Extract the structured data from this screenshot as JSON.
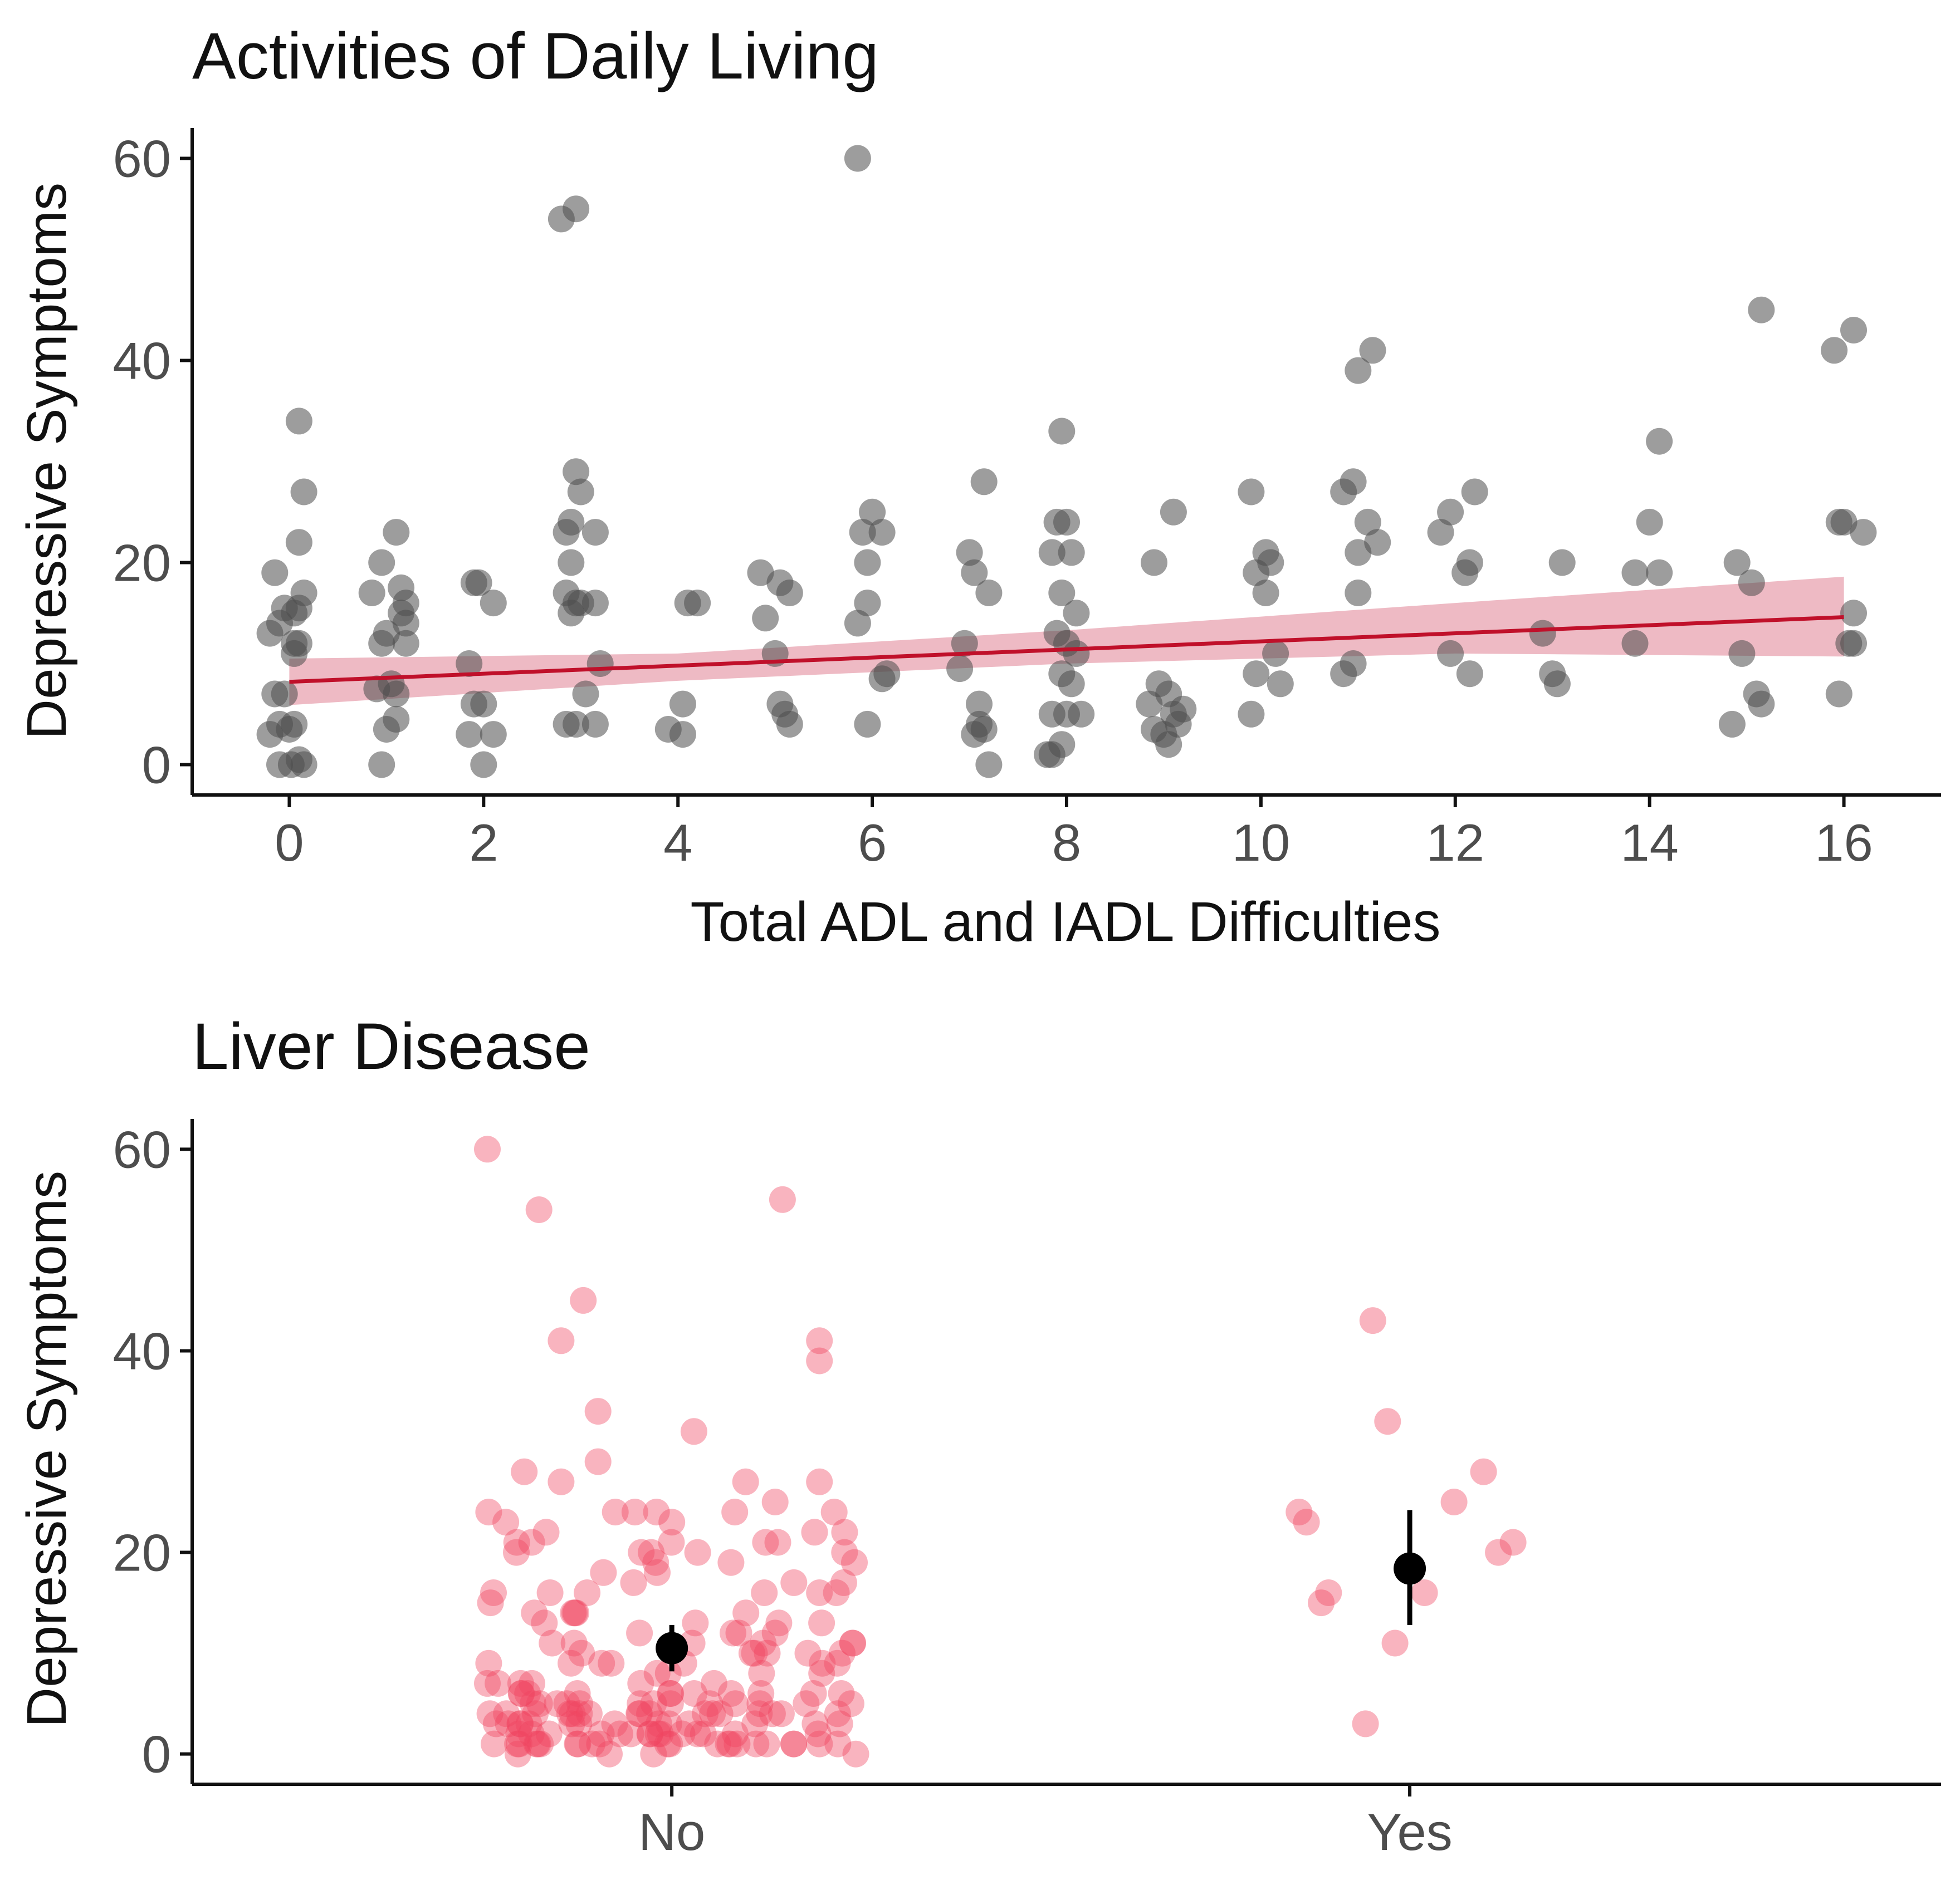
{
  "chart_data": [
    {
      "type": "scatter",
      "title": "Activities of Daily Living",
      "xlabel": "Total ADL and IADL Difficulties",
      "ylabel": "Depressive Symptoms",
      "xlim": [
        -1,
        17
      ],
      "ylim": [
        -3,
        63
      ],
      "xticks": [
        0,
        2,
        4,
        6,
        8,
        10,
        12,
        14,
        16
      ],
      "yticks": [
        0,
        20,
        40,
        60
      ],
      "point_color": "#4d4d4d",
      "fit": {
        "x0": 0,
        "y0": 8.2,
        "x1": 16,
        "y1": 14.6,
        "line_color": "#c0102a",
        "band_color": "#d9677d",
        "ci_lower": [
          [
            0,
            5.9
          ],
          [
            4,
            8.3
          ],
          [
            8,
            10.0
          ],
          [
            12,
            11.0
          ],
          [
            16,
            10.7
          ]
        ],
        "ci_upper": [
          [
            0,
            10.5
          ],
          [
            4,
            11.0
          ],
          [
            8,
            13.3
          ],
          [
            12,
            16.0
          ],
          [
            16,
            18.6
          ]
        ]
      },
      "points": [
        [
          -0.15,
          19
        ],
        [
          -0.2,
          13
        ],
        [
          -0.1,
          14
        ],
        [
          -0.05,
          15.5
        ],
        [
          0.05,
          15
        ],
        [
          0.1,
          12
        ],
        [
          0.05,
          11
        ],
        [
          -0.15,
          7
        ],
        [
          -0.05,
          7
        ],
        [
          -0.2,
          3
        ],
        [
          -0.1,
          4
        ],
        [
          0,
          3.5
        ],
        [
          0.05,
          4
        ],
        [
          0.1,
          0.5
        ],
        [
          -0.1,
          0
        ],
        [
          0.02,
          0
        ],
        [
          0.1,
          34
        ],
        [
          0.1,
          22
        ],
        [
          0.15,
          27
        ],
        [
          0.15,
          17
        ],
        [
          0.1,
          15.5
        ],
        [
          0.05,
          12
        ],
        [
          0.15,
          0
        ],
        [
          0.85,
          17
        ],
        [
          0.95,
          20
        ],
        [
          1.0,
          13
        ],
        [
          1.1,
          23
        ],
        [
          1.15,
          17.5
        ],
        [
          1.2,
          16
        ],
        [
          1.15,
          15
        ],
        [
          1.2,
          14
        ],
        [
          0.95,
          12
        ],
        [
          1.2,
          12
        ],
        [
          0.9,
          7.5
        ],
        [
          1.05,
          8
        ],
        [
          1.1,
          7
        ],
        [
          1.0,
          3.5
        ],
        [
          1.1,
          4.5
        ],
        [
          0.95,
          0
        ],
        [
          1.9,
          18
        ],
        [
          1.95,
          18
        ],
        [
          2.1,
          16
        ],
        [
          1.85,
          10
        ],
        [
          1.9,
          6
        ],
        [
          2.0,
          6
        ],
        [
          1.85,
          3
        ],
        [
          2.1,
          3
        ],
        [
          2.0,
          0
        ],
        [
          2.8,
          54
        ],
        [
          2.95,
          55
        ],
        [
          2.95,
          29
        ],
        [
          3.0,
          27
        ],
        [
          2.9,
          24
        ],
        [
          3.15,
          23
        ],
        [
          2.85,
          23
        ],
        [
          2.9,
          20
        ],
        [
          2.85,
          17
        ],
        [
          3.0,
          16
        ],
        [
          3.15,
          16
        ],
        [
          2.95,
          16
        ],
        [
          2.9,
          15
        ],
        [
          3.2,
          10
        ],
        [
          3.05,
          7
        ],
        [
          2.85,
          4
        ],
        [
          2.95,
          4
        ],
        [
          3.15,
          4
        ],
        [
          4.1,
          16
        ],
        [
          4.2,
          16
        ],
        [
          4.05,
          6
        ],
        [
          3.9,
          3.5
        ],
        [
          4.05,
          3
        ],
        [
          4.85,
          19
        ],
        [
          4.9,
          14.5
        ],
        [
          5.05,
          18
        ],
        [
          5.15,
          17
        ],
        [
          5.0,
          11
        ],
        [
          5.05,
          6
        ],
        [
          5.1,
          5
        ],
        [
          5.15,
          4
        ],
        [
          5.85,
          60
        ],
        [
          6.0,
          25
        ],
        [
          5.9,
          23
        ],
        [
          6.1,
          23
        ],
        [
          5.95,
          20
        ],
        [
          5.85,
          14
        ],
        [
          5.95,
          16
        ],
        [
          6.15,
          9
        ],
        [
          6.1,
          8.5
        ],
        [
          5.95,
          4
        ],
        [
          7.0,
          21
        ],
        [
          7.05,
          19
        ],
        [
          7.2,
          17
        ],
        [
          7.15,
          28
        ],
        [
          6.95,
          12
        ],
        [
          6.9,
          9.5
        ],
        [
          7.1,
          6
        ],
        [
          7.1,
          4
        ],
        [
          7.05,
          3
        ],
        [
          7.15,
          3.5
        ],
        [
          7.2,
          0
        ],
        [
          7.85,
          21
        ],
        [
          8.05,
          21
        ],
        [
          7.9,
          24
        ],
        [
          8.0,
          24
        ],
        [
          7.95,
          17
        ],
        [
          8.1,
          15
        ],
        [
          7.9,
          13
        ],
        [
          8.0,
          12
        ],
        [
          8.1,
          11
        ],
        [
          7.95,
          9
        ],
        [
          8.05,
          8
        ],
        [
          7.85,
          5
        ],
        [
          8.0,
          5
        ],
        [
          8.15,
          5
        ],
        [
          7.8,
          1
        ],
        [
          7.85,
          1
        ],
        [
          7.95,
          2
        ],
        [
          7.95,
          33
        ],
        [
          8.9,
          20
        ],
        [
          9.1,
          25
        ],
        [
          8.95,
          8
        ],
        [
          9.05,
          7
        ],
        [
          8.85,
          6
        ],
        [
          9.1,
          5
        ],
        [
          9.2,
          5.5
        ],
        [
          8.9,
          3.5
        ],
        [
          9.0,
          3
        ],
        [
          9.15,
          4
        ],
        [
          9.05,
          2
        ],
        [
          9.9,
          27
        ],
        [
          9.95,
          19
        ],
        [
          10.05,
          21
        ],
        [
          10.1,
          20
        ],
        [
          10.05,
          17
        ],
        [
          10.15,
          11
        ],
        [
          9.95,
          9
        ],
        [
          10.2,
          8
        ],
        [
          9.9,
          5
        ],
        [
          10.85,
          27
        ],
        [
          10.95,
          28
        ],
        [
          11.0,
          21
        ],
        [
          11.1,
          24
        ],
        [
          11.2,
          22
        ],
        [
          11.0,
          17
        ],
        [
          10.95,
          10
        ],
        [
          10.85,
          9
        ],
        [
          11.0,
          39
        ],
        [
          11.15,
          41
        ],
        [
          11.85,
          23
        ],
        [
          11.95,
          25
        ],
        [
          12.2,
          27
        ],
        [
          12.15,
          20
        ],
        [
          12.1,
          19
        ],
        [
          11.95,
          11
        ],
        [
          12.15,
          9
        ],
        [
          13.1,
          20
        ],
        [
          12.9,
          13
        ],
        [
          13.0,
          9
        ],
        [
          13.05,
          8
        ],
        [
          13.85,
          19
        ],
        [
          14.0,
          24
        ],
        [
          14.1,
          19
        ],
        [
          14.1,
          32
        ],
        [
          13.85,
          12
        ],
        [
          14.9,
          20
        ],
        [
          15.05,
          18
        ],
        [
          15.15,
          45
        ],
        [
          14.95,
          11
        ],
        [
          15.1,
          7
        ],
        [
          15.15,
          6
        ],
        [
          14.85,
          4
        ],
        [
          15.9,
          41
        ],
        [
          16.1,
          43
        ],
        [
          15.95,
          24
        ],
        [
          16.0,
          24
        ],
        [
          16.2,
          23
        ],
        [
          16.1,
          15
        ],
        [
          16.1,
          12
        ],
        [
          16.05,
          12
        ],
        [
          15.95,
          7
        ]
      ]
    },
    {
      "type": "strip",
      "title": "Liver Disease",
      "xlabel": "",
      "ylabel": "Depressive Symptoms",
      "categories": [
        "No",
        "Yes"
      ],
      "ylim": [
        -3,
        63
      ],
      "yticks": [
        0,
        20,
        40,
        60
      ],
      "point_color": "#ef4460",
      "summary_color": "#000000",
      "means": [
        {
          "category": "No",
          "mean": 10.5,
          "lower": 8.2,
          "upper": 12.8
        },
        {
          "category": "Yes",
          "mean": 18.4,
          "lower": 12.8,
          "upper": 24.2
        }
      ],
      "points_yes": [
        [
          0.95,
          43
        ],
        [
          0.97,
          33
        ],
        [
          1.1,
          28
        ],
        [
          1.06,
          25
        ],
        [
          0.85,
          24
        ],
        [
          0.86,
          23
        ],
        [
          1.14,
          21
        ],
        [
          1.12,
          20
        ],
        [
          0.89,
          16
        ],
        [
          0.88,
          15
        ],
        [
          1.02,
          16
        ],
        [
          0.98,
          11
        ],
        [
          0.94,
          3
        ]
      ],
      "points_no_outliers": [
        [
          -0.25,
          60
        ],
        [
          -0.18,
          54
        ],
        [
          0.15,
          55
        ],
        [
          -0.12,
          45
        ],
        [
          -0.15,
          41
        ],
        [
          0.2,
          41
        ],
        [
          0.2,
          39
        ],
        [
          -0.1,
          34
        ],
        [
          0.03,
          32
        ],
        [
          -0.1,
          29
        ],
        [
          -0.2,
          28
        ],
        [
          -0.15,
          27
        ],
        [
          0.1,
          27
        ],
        [
          0.2,
          27
        ],
        [
          0.14,
          25
        ],
        [
          0.22,
          24
        ],
        [
          0.2,
          16
        ],
        [
          -0.05,
          24
        ],
        [
          0.0,
          23
        ]
      ],
      "n_no_cluster": 170,
      "no_cluster_seed": 7
    }
  ]
}
